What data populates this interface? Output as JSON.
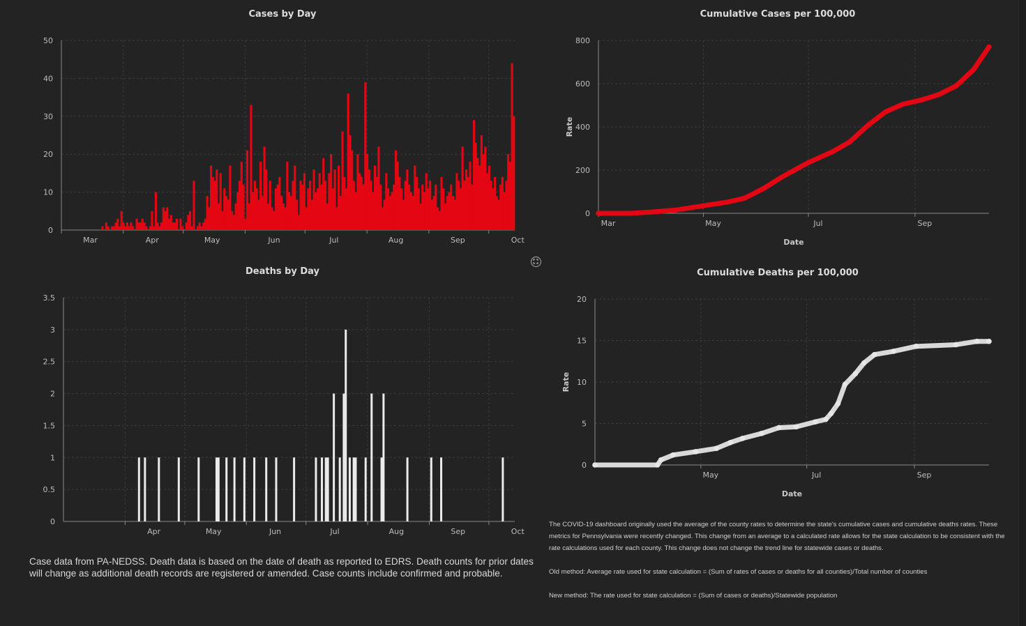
{
  "charts": {
    "cases_by_day": {
      "title": "Cases by Day"
    },
    "cumulative_cases": {
      "title": "Cumulative Cases per 100,000"
    },
    "deaths_by_day": {
      "title": "Deaths by Day"
    },
    "cumulative_deaths": {
      "title": "Cumulative Deaths per 100,000"
    }
  },
  "notes": {
    "data_source": "Case data from PA-NEDSS.  Death data is based on the date of death as reported to EDRS. Death counts for prior dates will change as additional death records are registered or amended.  Case counts include confirmed and probable.",
    "method_intro": "The COVID-19 dashboard originally used the average of the county rates to determine the state's cumulative cases and cumulative deaths rates. These metrics for Pennsylvania were recently changed. This change from an average to a calculated rate allows for the state calculation to be consistent with the rate calculations used for each county. This change does not change the trend line for statewide cases or deaths.",
    "old_method": "Old method: Average rate used for state calculation = (Sum of rates of cases or deaths for all counties)/Total number of counties",
    "new_method": "New method: The rate used for state calculation = (Sum of cases or deaths)/Statewide population"
  },
  "icons": {
    "expand": "expand-icon"
  },
  "colors": {
    "cases": "#e30613",
    "deaths_bars": "#ebebeb",
    "deaths_line": "#d9d9d9",
    "background": "#232323"
  },
  "chart_data": [
    {
      "type": "bar",
      "title": "Cases by Day",
      "x_start": "2020-03-01",
      "x_end": "2020-10-14",
      "xticks": [
        "Mar",
        "Apr",
        "May",
        "Jun",
        "Jul",
        "Aug",
        "Sep",
        "Oct"
      ],
      "ylim": [
        0,
        50
      ],
      "yticks": [
        "0",
        "10",
        "20",
        "30",
        "40",
        "50"
      ],
      "grid": true,
      "color": "#e30613",
      "values": [
        0,
        0,
        0,
        0,
        0,
        0,
        0,
        0,
        0,
        0,
        0,
        0,
        0,
        0,
        0,
        0,
        0,
        0,
        0,
        0,
        0,
        1,
        0,
        2,
        1,
        0,
        1,
        1,
        2,
        3,
        1,
        5,
        2,
        1,
        2,
        1,
        2,
        1,
        0,
        3,
        2,
        2,
        3,
        2,
        1,
        0,
        1,
        5,
        1,
        10,
        2,
        1,
        2,
        6,
        5,
        6,
        3,
        4,
        2,
        2,
        3,
        0,
        3,
        1,
        0,
        2,
        4,
        5,
        1,
        13,
        0,
        1,
        2,
        1,
        2,
        3,
        9,
        6,
        17,
        14,
        13,
        16,
        7,
        15,
        5,
        11,
        9,
        8,
        17,
        5,
        4,
        7,
        10,
        13,
        18,
        12,
        3,
        21,
        7,
        33,
        10,
        13,
        11,
        8,
        18,
        9,
        22,
        16,
        7,
        13,
        6,
        5,
        11,
        12,
        14,
        9,
        7,
        6,
        18,
        10,
        9,
        13,
        17,
        8,
        4,
        13,
        12,
        15,
        6,
        11,
        13,
        8,
        16,
        10,
        11,
        15,
        12,
        19,
        13,
        7,
        15,
        20,
        11,
        16,
        6,
        17,
        9,
        26,
        14,
        11,
        36,
        25,
        21,
        13,
        10,
        20,
        15,
        14,
        12,
        39,
        20,
        16,
        13,
        10,
        17,
        14,
        22,
        12,
        6,
        8,
        15,
        11,
        9,
        10,
        12,
        21,
        18,
        14,
        11,
        8,
        13,
        16,
        12,
        10,
        9,
        17,
        14,
        11,
        7,
        12,
        10,
        15,
        11,
        13,
        8,
        9,
        12,
        6,
        5,
        14,
        11,
        7,
        9,
        10,
        12,
        9,
        8,
        15,
        13,
        11,
        22,
        13,
        16,
        14,
        18,
        12,
        29,
        23,
        19,
        17,
        25,
        20,
        22,
        15,
        17,
        13,
        11,
        14,
        9,
        8,
        12,
        14,
        10,
        13,
        20,
        18,
        44,
        30
      ]
    },
    {
      "type": "line",
      "title": "Cumulative Cases per 100,000",
      "xlabel": "Date",
      "ylabel": "Rate",
      "x_start": "2020-03-01",
      "x_end": "2020-10-14",
      "xticks": [
        "Mar",
        "May",
        "Jul",
        "Sep"
      ],
      "ylim": [
        0,
        800
      ],
      "yticks": [
        "0",
        "200",
        "400",
        "600",
        "800"
      ],
      "grid": true,
      "color": "#e30613",
      "points": [
        [
          "2020-03-01",
          0
        ],
        [
          "2020-03-20",
          0
        ],
        [
          "2020-04-01",
          6
        ],
        [
          "2020-04-15",
          15
        ],
        [
          "2020-05-01",
          35
        ],
        [
          "2020-05-15",
          52
        ],
        [
          "2020-05-25",
          70
        ],
        [
          "2020-06-05",
          115
        ],
        [
          "2020-06-15",
          165
        ],
        [
          "2020-07-01",
          235
        ],
        [
          "2020-07-15",
          285
        ],
        [
          "2020-07-25",
          330
        ],
        [
          "2020-08-05",
          410
        ],
        [
          "2020-08-15",
          470
        ],
        [
          "2020-08-25",
          505
        ],
        [
          "2020-09-05",
          525
        ],
        [
          "2020-09-15",
          550
        ],
        [
          "2020-09-25",
          590
        ],
        [
          "2020-10-05",
          665
        ],
        [
          "2020-10-14",
          770
        ]
      ]
    },
    {
      "type": "bar",
      "title": "Deaths by Day",
      "x_start": "2020-03-01",
      "x_end": "2020-10-14",
      "xticks": [
        "Apr",
        "May",
        "Jun",
        "Jul",
        "Aug",
        "Sep",
        "Oct"
      ],
      "ylim": [
        0,
        3.5
      ],
      "yticks": [
        "0",
        "0.5",
        "1",
        "1.5",
        "2",
        "2.5",
        "3",
        "3.5"
      ],
      "grid": true,
      "color": "#ebebeb",
      "points": [
        [
          "2020-04-08",
          1
        ],
        [
          "2020-04-11",
          1
        ],
        [
          "2020-04-18",
          1
        ],
        [
          "2020-04-28",
          1
        ],
        [
          "2020-05-08",
          1
        ],
        [
          "2020-05-17",
          1
        ],
        [
          "2020-05-18",
          1
        ],
        [
          "2020-05-22",
          1
        ],
        [
          "2020-05-26",
          1
        ],
        [
          "2020-05-31",
          1
        ],
        [
          "2020-06-05",
          1
        ],
        [
          "2020-06-11",
          1
        ],
        [
          "2020-06-16",
          1
        ],
        [
          "2020-06-25",
          1
        ],
        [
          "2020-07-06",
          1
        ],
        [
          "2020-07-09",
          1
        ],
        [
          "2020-07-11",
          1
        ],
        [
          "2020-07-12",
          1
        ],
        [
          "2020-07-15",
          2
        ],
        [
          "2020-07-18",
          1
        ],
        [
          "2020-07-20",
          2
        ],
        [
          "2020-07-21",
          3
        ],
        [
          "2020-07-23",
          1
        ],
        [
          "2020-07-25",
          1
        ],
        [
          "2020-07-26",
          1
        ],
        [
          "2020-07-31",
          1
        ],
        [
          "2020-08-03",
          2
        ],
        [
          "2020-08-08",
          1
        ],
        [
          "2020-08-09",
          2
        ],
        [
          "2020-08-21",
          1
        ],
        [
          "2020-09-02",
          1
        ],
        [
          "2020-09-07",
          1
        ],
        [
          "2020-10-08",
          1
        ]
      ]
    },
    {
      "type": "line",
      "title": "Cumulative Deaths per 100,000",
      "xlabel": "Date",
      "ylabel": "Rate",
      "x_start": "2020-03-01",
      "x_end": "2020-10-14",
      "xticks": [
        "May",
        "Jul",
        "Sep"
      ],
      "ylim": [
        0,
        20
      ],
      "yticks": [
        "0",
        "5",
        "10",
        "15",
        "20"
      ],
      "grid": true,
      "color": "#d9d9d9",
      "points": [
        [
          "2020-03-01",
          0
        ],
        [
          "2020-04-06",
          0
        ],
        [
          "2020-04-08",
          0.6
        ],
        [
          "2020-04-15",
          1.2
        ],
        [
          "2020-04-28",
          1.6
        ],
        [
          "2020-05-10",
          2
        ],
        [
          "2020-05-18",
          2.7
        ],
        [
          "2020-05-25",
          3.2
        ],
        [
          "2020-06-05",
          3.8
        ],
        [
          "2020-06-15",
          4.5
        ],
        [
          "2020-06-25",
          4.6
        ],
        [
          "2020-07-06",
          5.2
        ],
        [
          "2020-07-12",
          5.5
        ],
        [
          "2020-07-15",
          6.2
        ],
        [
          "2020-07-19",
          7.4
        ],
        [
          "2020-07-23",
          9.7
        ],
        [
          "2020-07-29",
          11
        ],
        [
          "2020-08-03",
          12.3
        ],
        [
          "2020-08-09",
          13.3
        ],
        [
          "2020-08-20",
          13.7
        ],
        [
          "2020-09-02",
          14.3
        ],
        [
          "2020-09-25",
          14.5
        ],
        [
          "2020-10-07",
          14.9
        ],
        [
          "2020-10-14",
          14.9
        ]
      ]
    }
  ]
}
